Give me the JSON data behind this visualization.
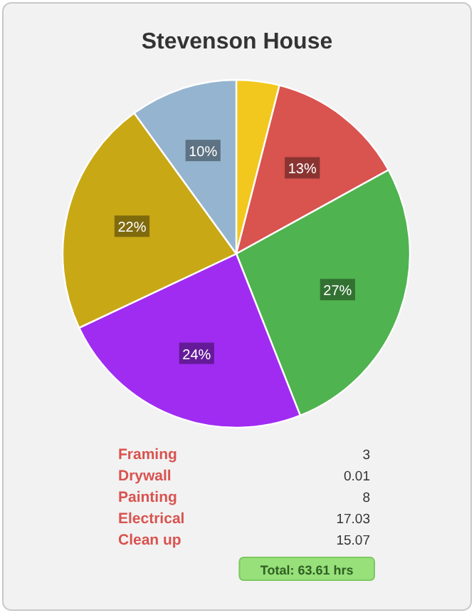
{
  "chart_data": [
    {
      "type": "pie",
      "title": "Stevenson House",
      "categories": [
        null,
        null,
        null,
        null,
        null,
        null
      ],
      "values": [
        4,
        13,
        27,
        24,
        22,
        10
      ],
      "colors": [
        "#f2c81e",
        "#d9534f",
        "#4fb34f",
        "#a02cf2",
        "#c9a816",
        "#95b4cf"
      ],
      "value_labels": [
        null,
        "13%",
        "27%",
        "24%",
        "22%",
        "10%"
      ]
    },
    {
      "type": "other",
      "categories": [
        "Framing",
        "Drywall",
        "Painting",
        "Electrical",
        "Clean up"
      ],
      "values": [
        3,
        0.01,
        8,
        17.03,
        15.07
      ],
      "data_labels": true,
      "annotations": [
        "Total: 63.61 hrs"
      ]
    }
  ]
}
